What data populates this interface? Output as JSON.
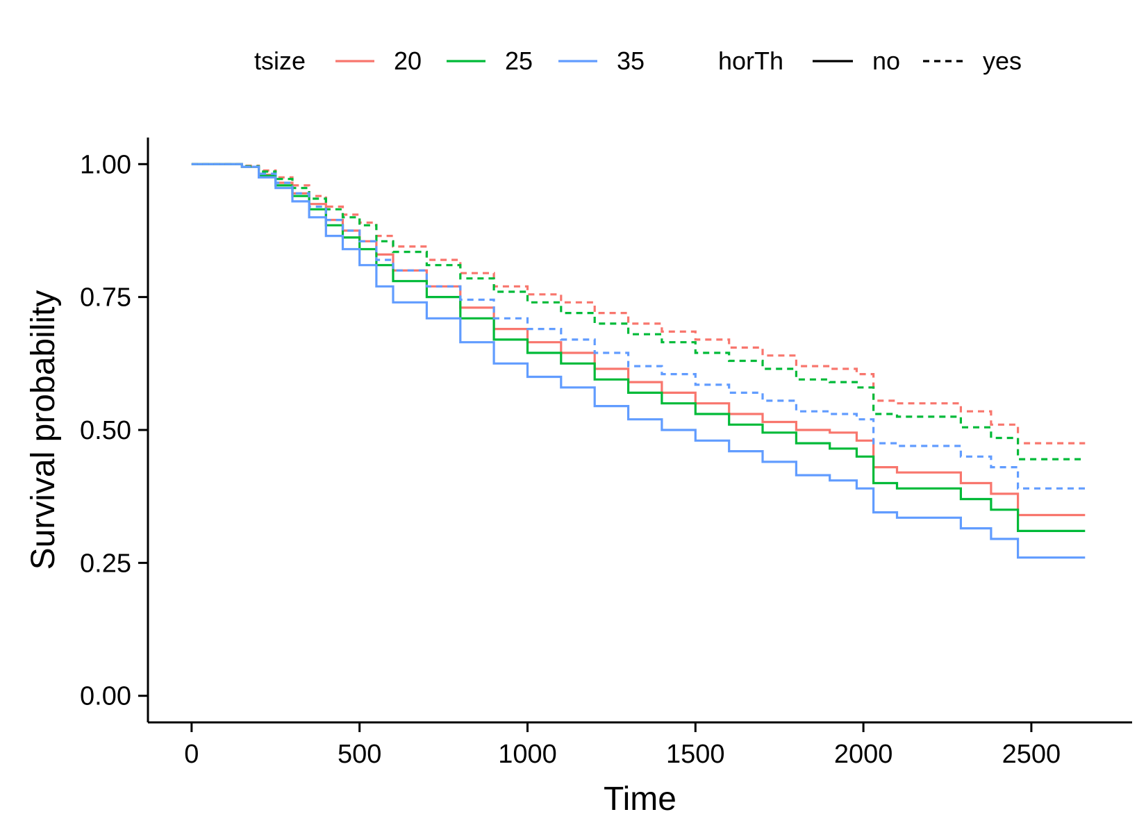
{
  "chart_data": {
    "type": "line",
    "xlabel": "Time",
    "ylabel": "Survival probability",
    "xlim": [
      -130,
      2800
    ],
    "ylim": [
      -0.05,
      1.05
    ],
    "x_ticks": [
      0,
      500,
      1000,
      1500,
      2000,
      2500
    ],
    "y_ticks": [
      0,
      0.25,
      0.5,
      0.75,
      1.0
    ],
    "x_tick_labels": [
      "0",
      "500",
      "1000",
      "1500",
      "2000",
      "2500"
    ],
    "y_tick_labels": [
      "0.00",
      "0.25",
      "0.50",
      "0.75",
      "1.00"
    ],
    "grid": false,
    "legend_position": "top",
    "legend": {
      "color_title": "tsize",
      "color_items": [
        {
          "label": "20",
          "color": "#F8766D"
        },
        {
          "label": "25",
          "color": "#00BA38"
        },
        {
          "label": "35",
          "color": "#619CFF"
        }
      ],
      "linetype_title": "horTh",
      "linetype_items": [
        {
          "label": "no",
          "style": "solid"
        },
        {
          "label": "yes",
          "style": "dashed"
        }
      ]
    },
    "series": [
      {
        "tsize": "20",
        "horTh": "no",
        "color": "#F8766D",
        "dash": "solid",
        "x": [
          0,
          150,
          200,
          250,
          300,
          350,
          400,
          450,
          500,
          550,
          600,
          700,
          800,
          900,
          1000,
          1100,
          1200,
          1300,
          1400,
          1500,
          1600,
          1700,
          1800,
          1900,
          1980,
          2030,
          2100,
          2200,
          2290,
          2380,
          2460,
          2660
        ],
        "y": [
          1.0,
          0.995,
          0.98,
          0.965,
          0.945,
          0.925,
          0.895,
          0.875,
          0.855,
          0.83,
          0.8,
          0.77,
          0.73,
          0.69,
          0.665,
          0.645,
          0.615,
          0.59,
          0.57,
          0.55,
          0.53,
          0.515,
          0.5,
          0.495,
          0.48,
          0.43,
          0.42,
          0.42,
          0.4,
          0.38,
          0.34,
          0.34
        ]
      },
      {
        "tsize": "25",
        "horTh": "no",
        "color": "#00BA38",
        "dash": "solid",
        "x": [
          0,
          150,
          200,
          250,
          300,
          350,
          400,
          450,
          500,
          550,
          600,
          700,
          800,
          900,
          1000,
          1100,
          1200,
          1300,
          1400,
          1500,
          1600,
          1700,
          1800,
          1900,
          1980,
          2030,
          2100,
          2200,
          2290,
          2380,
          2460,
          2660
        ],
        "y": [
          1.0,
          0.995,
          0.978,
          0.96,
          0.94,
          0.915,
          0.885,
          0.862,
          0.84,
          0.81,
          0.78,
          0.75,
          0.71,
          0.67,
          0.645,
          0.625,
          0.595,
          0.57,
          0.55,
          0.53,
          0.51,
          0.495,
          0.475,
          0.465,
          0.45,
          0.4,
          0.39,
          0.39,
          0.37,
          0.35,
          0.31,
          0.31
        ]
      },
      {
        "tsize": "35",
        "horTh": "no",
        "color": "#619CFF",
        "dash": "solid",
        "x": [
          0,
          150,
          200,
          250,
          300,
          350,
          400,
          450,
          500,
          550,
          600,
          700,
          800,
          900,
          1000,
          1100,
          1200,
          1300,
          1400,
          1500,
          1600,
          1700,
          1800,
          1900,
          1980,
          2030,
          2100,
          2200,
          2290,
          2380,
          2460,
          2660
        ],
        "y": [
          1.0,
          0.995,
          0.975,
          0.955,
          0.93,
          0.9,
          0.865,
          0.84,
          0.81,
          0.77,
          0.74,
          0.71,
          0.665,
          0.625,
          0.6,
          0.58,
          0.545,
          0.52,
          0.5,
          0.48,
          0.46,
          0.44,
          0.415,
          0.405,
          0.39,
          0.345,
          0.335,
          0.335,
          0.315,
          0.295,
          0.26,
          0.26
        ]
      },
      {
        "tsize": "20",
        "horTh": "yes",
        "color": "#F8766D",
        "dash": "dashed",
        "x": [
          0,
          150,
          200,
          250,
          300,
          350,
          400,
          450,
          500,
          550,
          600,
          700,
          800,
          900,
          1000,
          1100,
          1200,
          1300,
          1400,
          1500,
          1600,
          1700,
          1800,
          1900,
          1980,
          2030,
          2100,
          2200,
          2290,
          2380,
          2460,
          2660
        ],
        "y": [
          1.0,
          0.997,
          0.988,
          0.975,
          0.96,
          0.94,
          0.92,
          0.905,
          0.89,
          0.865,
          0.845,
          0.82,
          0.795,
          0.77,
          0.755,
          0.74,
          0.72,
          0.7,
          0.685,
          0.67,
          0.655,
          0.64,
          0.62,
          0.615,
          0.605,
          0.555,
          0.55,
          0.55,
          0.535,
          0.51,
          0.475,
          0.475
        ]
      },
      {
        "tsize": "25",
        "horTh": "yes",
        "color": "#00BA38",
        "dash": "dashed",
        "x": [
          0,
          150,
          200,
          250,
          300,
          350,
          400,
          450,
          500,
          550,
          600,
          700,
          800,
          900,
          1000,
          1100,
          1200,
          1300,
          1400,
          1500,
          1600,
          1700,
          1800,
          1900,
          1980,
          2030,
          2100,
          2200,
          2290,
          2380,
          2460,
          2660
        ],
        "y": [
          1.0,
          0.996,
          0.986,
          0.972,
          0.955,
          0.935,
          0.915,
          0.9,
          0.885,
          0.855,
          0.835,
          0.81,
          0.785,
          0.76,
          0.74,
          0.72,
          0.7,
          0.68,
          0.665,
          0.645,
          0.63,
          0.615,
          0.595,
          0.59,
          0.58,
          0.53,
          0.525,
          0.525,
          0.505,
          0.485,
          0.445,
          0.445
        ]
      },
      {
        "tsize": "35",
        "horTh": "yes",
        "color": "#619CFF",
        "dash": "dashed",
        "x": [
          0,
          150,
          200,
          250,
          300,
          350,
          400,
          450,
          500,
          550,
          600,
          700,
          800,
          900,
          1000,
          1100,
          1200,
          1300,
          1400,
          1500,
          1600,
          1700,
          1800,
          1900,
          1980,
          2030,
          2100,
          2200,
          2290,
          2380,
          2460,
          2660
        ],
        "y": [
          1.0,
          0.995,
          0.982,
          0.965,
          0.945,
          0.92,
          0.895,
          0.875,
          0.855,
          0.82,
          0.8,
          0.77,
          0.745,
          0.71,
          0.69,
          0.67,
          0.645,
          0.62,
          0.605,
          0.585,
          0.57,
          0.555,
          0.535,
          0.53,
          0.52,
          0.475,
          0.47,
          0.47,
          0.45,
          0.43,
          0.39,
          0.39
        ]
      }
    ]
  }
}
